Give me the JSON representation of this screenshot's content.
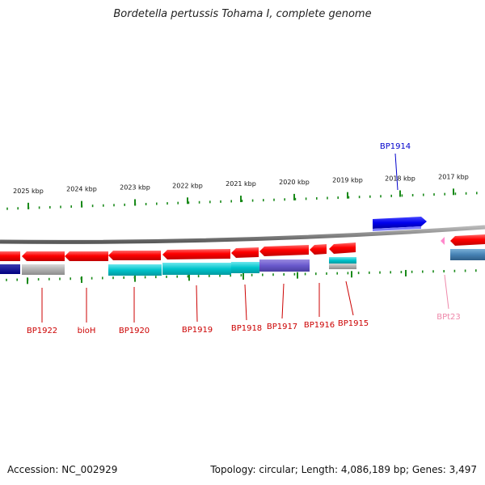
{
  "title": "Bordetella pertussis Tohama I, complete genome",
  "footer": {
    "accession": "Accession: NC_002929",
    "summary": "Topology: circular; Length: 4,086,189 bp; Genes: 3,497"
  },
  "colors": {
    "backbone": "#8a8a8a",
    "tick": "#1a8a1a",
    "gene_forward": "#0000ee",
    "gene_reverse": "#ee0000",
    "cds_cyan": "#00c0c8",
    "cds_purple": "#6a5acd",
    "cds_gray": "#b0b0b0",
    "cds_steel": "#4682b4",
    "label_red": "#cc0000",
    "label_blue": "#0000cc",
    "label_pink": "#ee88aa"
  },
  "scale_labels": [
    "2025 kbp",
    "2024 kbp",
    "2023 kbp",
    "2022 kbp",
    "2021 kbp",
    "2020 kbp",
    "2019 kbp",
    "2018 kbp",
    "2017 kbp"
  ],
  "gene_labels": [
    {
      "name": "BP1922",
      "color": "red"
    },
    {
      "name": "bioH",
      "color": "red"
    },
    {
      "name": "BP1920",
      "color": "red"
    },
    {
      "name": "BP1919",
      "color": "red"
    },
    {
      "name": "BP1918",
      "color": "red"
    },
    {
      "name": "BP1917",
      "color": "red"
    },
    {
      "name": "BP1916",
      "color": "red"
    },
    {
      "name": "BP1915",
      "color": "red"
    },
    {
      "name": "BPt23",
      "color": "pink"
    },
    {
      "name": "BP1914",
      "color": "blue"
    }
  ]
}
